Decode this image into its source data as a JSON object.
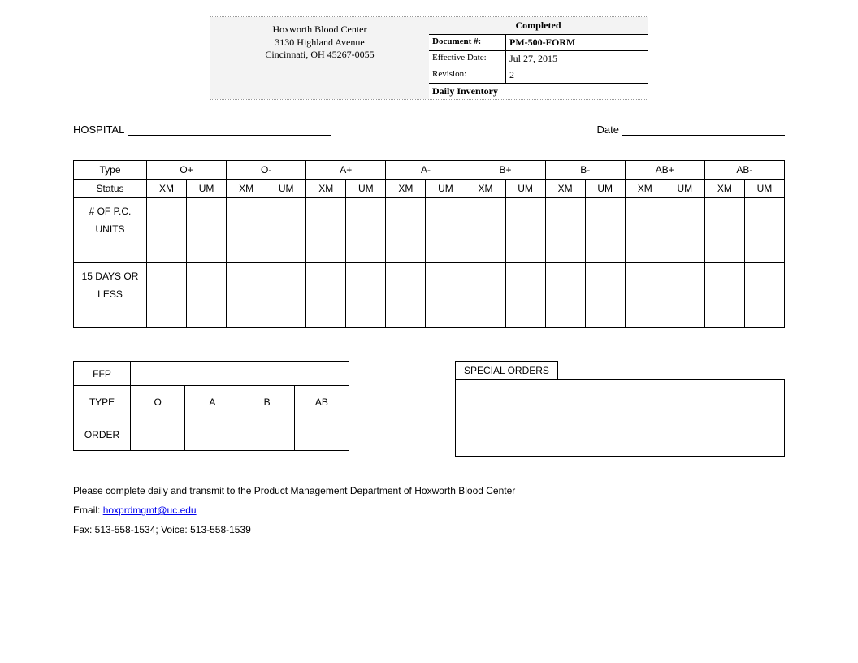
{
  "header": {
    "org_name": "Hoxworth Blood Center",
    "address1": "3130 Highland Avenue",
    "address2": "Cincinnati, OH  45267-0055",
    "status": "Completed",
    "doc_label": "Document #:",
    "doc_value": "PM-500-FORM",
    "eff_label": "Effective Date:",
    "eff_value": "Jul 27, 2015",
    "rev_label": "Revision:",
    "rev_value": "2",
    "title": "Daily Inventory"
  },
  "form": {
    "hospital_label": "HOSPITAL",
    "date_label": "Date"
  },
  "main_table": {
    "type_label": "Type",
    "status_label": "Status",
    "blood_types": [
      "O+",
      "O-",
      "A+",
      "A-",
      "B+",
      "B-",
      "AB+",
      "AB-"
    ],
    "sub_cols": [
      "XM",
      "UM"
    ],
    "row1": "# OF P.C. UNITS",
    "row2": "15 DAYS OR LESS"
  },
  "ffp": {
    "title": "FFP",
    "type_label": "TYPE",
    "order_label": "ORDER",
    "types": [
      "O",
      "A",
      "B",
      "AB"
    ]
  },
  "special_orders": {
    "title": "SPECIAL ORDERS"
  },
  "footer": {
    "line1": "Please complete daily and transmit to the Product Management Department of  Hoxworth Blood Center",
    "email_label": "Email:  ",
    "email": "hoxprdmgmt@uc.edu",
    "fax_voice": "Fax: 513-558-1534; Voice: 513-558-1539"
  }
}
